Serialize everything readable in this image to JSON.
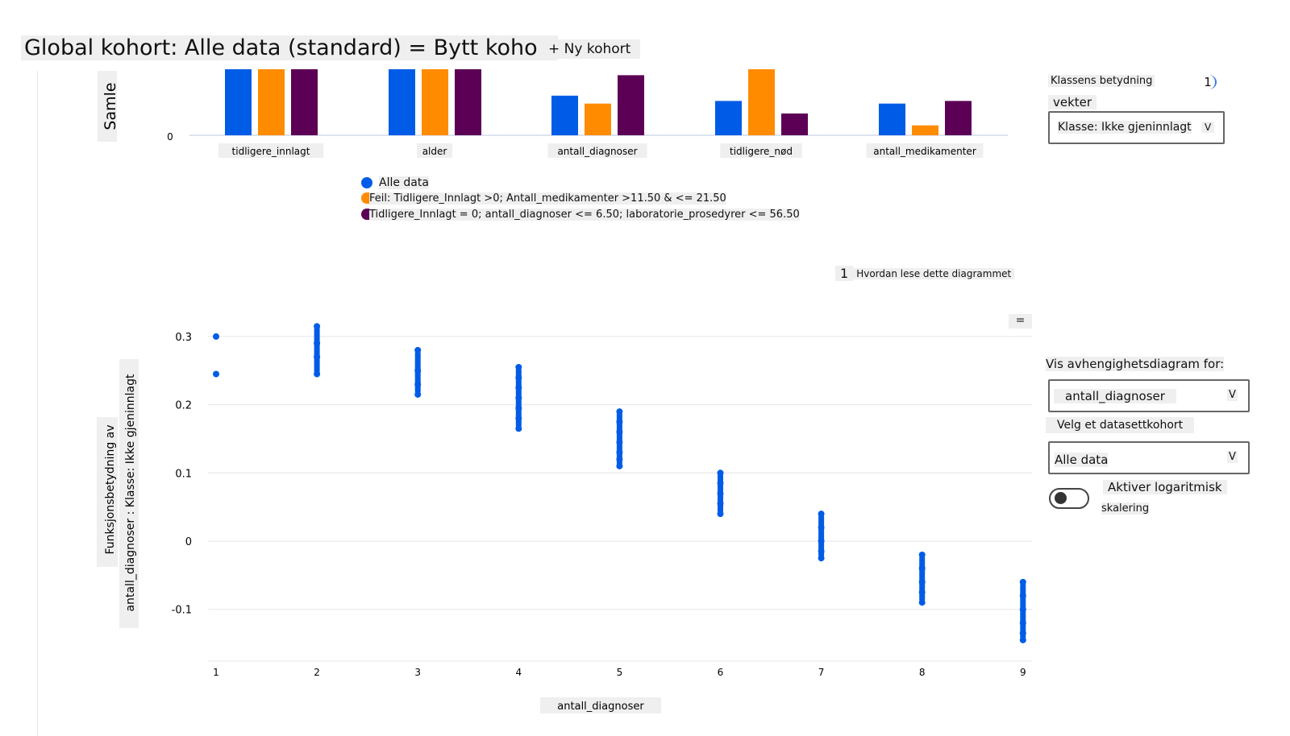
{
  "header": {
    "title": "Global kohort: Alle data (standard) = Bytt kohort",
    "new_cohort": "+ Ny kohort"
  },
  "right_panel": {
    "class_importance_label": "Klassens betydning",
    "info_badge": "1",
    "weights_label": "vekter",
    "class_select": "Klasse: Ikke gjeninnlagt",
    "chevron": "V",
    "dependence_label": "Vis avhengighetsdiagram for:",
    "feature_select": "antall_diagnoser",
    "cohort_label": "Velg et datasettkohort",
    "cohort_select": "Alle data",
    "log_label": "Aktiver logaritmisk",
    "log_label2": "skalering",
    "log_enabled": false
  },
  "help": {
    "badge": "1",
    "text": "Hvordan lese dette diagrammet"
  },
  "menu_button": "=",
  "colors": {
    "all": "#005ce6",
    "error": "#ff8c00",
    "cohort": "#5c0055"
  },
  "chart_data": [
    {
      "type": "bar",
      "ylabel": "Samle",
      "yticks": [
        "0"
      ],
      "categories": [
        "tidligere_innlagt",
        "alder",
        "antall_diagnoser",
        "tidligere_nød",
        "antall_medikamenter"
      ],
      "series": [
        {
          "name": "Alle data",
          "values": [
            1.0,
            1.0,
            0.6,
            0.52,
            0.48
          ]
        },
        {
          "name": "Feil: Tidligere_Innlagt >0; Antall_medikamenter >11.50 & <= 21.50",
          "values": [
            1.0,
            1.0,
            0.48,
            1.0,
            0.15
          ]
        },
        {
          "name": "Tidligere_Innlagt = 0; antall_diagnoser <= 6.50; laboratorie_prosedyrer <= 56.50",
          "values": [
            1.0,
            1.0,
            0.91,
            0.33,
            0.52
          ]
        }
      ]
    },
    {
      "type": "scatter",
      "xlabel": "antall_diagnoser",
      "ylabel": "Funksjonsbetydning av",
      "ylabel2": "antall_diagnoser : Klasse: Ikke gjeninnlagt",
      "xticks": [
        "1",
        "2",
        "3",
        "4",
        "5",
        "6",
        "7",
        "8",
        "9"
      ],
      "yticks": [
        "0.3",
        "0.2",
        "0.1",
        "0",
        "-0.1"
      ],
      "ylim": [
        -0.17,
        0.32
      ],
      "points": [
        {
          "x": 1,
          "y": [
            0.3,
            0.245
          ]
        },
        {
          "x": 2,
          "y": [
            0.315,
            0.29,
            0.27,
            0.245
          ]
        },
        {
          "x": 3,
          "y": [
            0.28,
            0.25,
            0.23,
            0.215
          ]
        },
        {
          "x": 4,
          "y": [
            0.255,
            0.24,
            0.225,
            0.21,
            0.195,
            0.18,
            0.165
          ]
        },
        {
          "x": 5,
          "y": [
            0.19,
            0.175,
            0.16,
            0.145,
            0.13,
            0.12,
            0.11
          ]
        },
        {
          "x": 6,
          "y": [
            0.1,
            0.085,
            0.07,
            0.055,
            0.04
          ]
        },
        {
          "x": 7,
          "y": [
            0.04,
            0.02,
            0.0,
            -0.015,
            -0.025
          ]
        },
        {
          "x": 8,
          "y": [
            -0.02,
            -0.04,
            -0.06,
            -0.075,
            -0.09
          ]
        },
        {
          "x": 9,
          "y": [
            -0.06,
            -0.08,
            -0.1,
            -0.12,
            -0.135,
            -0.145
          ]
        }
      ]
    }
  ]
}
